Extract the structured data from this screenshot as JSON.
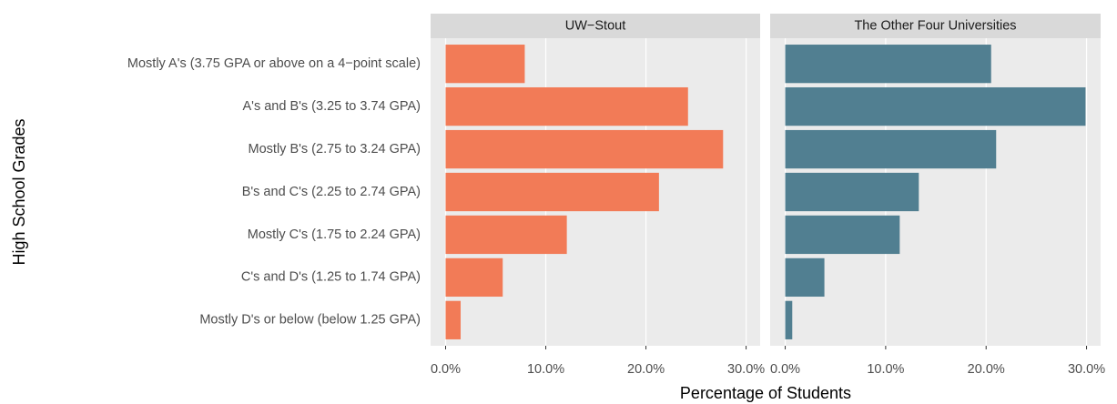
{
  "chart_data": {
    "type": "bar",
    "orientation": "horizontal",
    "y_label": "High School Grades",
    "x_label": "Percentage of Students",
    "categories": [
      "Mostly A's (3.75 GPA or above on a 4−point scale)",
      "A's and B's (3.25 to 3.74 GPA)",
      "Mostly B's (2.75 to 3.24 GPA)",
      "B's and C's (2.25 to 2.74 GPA)",
      "Mostly C's (1.75 to 2.24 GPA)",
      "C's and D's (1.25 to 1.74 GPA)",
      "Mostly D's or below (below 1.25 GPA)"
    ],
    "series": [
      {
        "name": "UW−Stout",
        "color": "#f27b57",
        "values": [
          7.9,
          24.2,
          27.7,
          21.3,
          12.1,
          5.7,
          1.5
        ]
      },
      {
        "name": "The Other Four Universities",
        "color": "#517f91",
        "values": [
          20.5,
          29.9,
          21.0,
          13.3,
          11.4,
          3.9,
          0.7
        ]
      }
    ],
    "xlim": [
      -1.5,
      31.4
    ],
    "xticks": [
      {
        "value": 0,
        "label": "0.0%"
      },
      {
        "value": 10,
        "label": "10.0%"
      },
      {
        "value": 20,
        "label": "20.0%"
      },
      {
        "value": 30,
        "label": "30.0%"
      }
    ],
    "grid": true
  }
}
